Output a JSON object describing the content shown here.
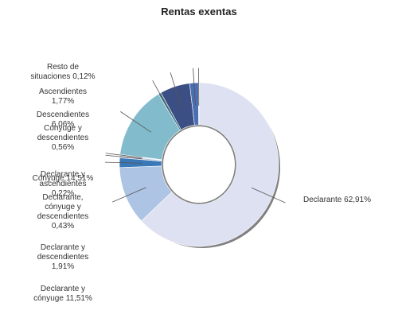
{
  "chart_data": {
    "type": "pie",
    "variant": "donut",
    "title": "Rentas exentas",
    "slices": [
      {
        "label": "Declarante 62,91%",
        "value": 62.91,
        "color": "#dde1f1"
      },
      {
        "label": "Declarante y cónyuge 11,51%",
        "value": 11.51,
        "color": "#aec4e4"
      },
      {
        "label": "Declarante y descendientes 1,91%",
        "value": 1.91,
        "color": "#3a79b8"
      },
      {
        "label": "Declarante, cónyuge y descendientes 0,43%",
        "value": 0.43,
        "color": "#b8c4dc"
      },
      {
        "label": "Declarante y ascendientes 0,22%",
        "value": 0.22,
        "color": "#c7cfe2"
      },
      {
        "label": "Cónyuge 14,51%",
        "value": 14.51,
        "color": "#82bccc"
      },
      {
        "label": "Cónyuge y descendientes 0,56%",
        "value": 0.56,
        "color": "#3f7a8c"
      },
      {
        "label": "Descendientes 6,06%",
        "value": 6.06,
        "color": "#3c4f84"
      },
      {
        "label": "Ascendientes 1,77%",
        "value": 1.77,
        "color": "#4a6fb2"
      },
      {
        "label": "Resto de situaciones 0,12%",
        "value": 0.12,
        "color": "#5e6b86"
      }
    ]
  }
}
